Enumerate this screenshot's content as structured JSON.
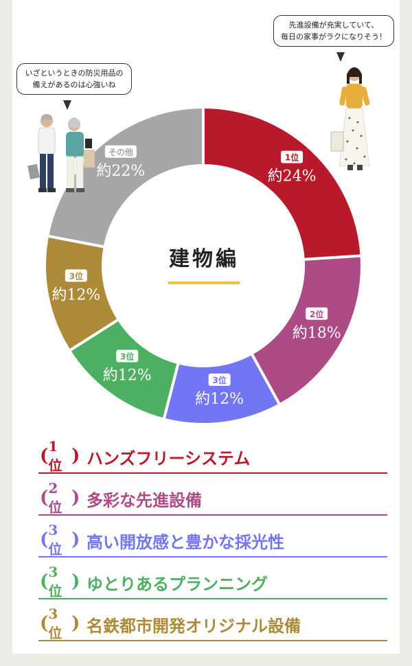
{
  "chart_data": {
    "type": "pie",
    "title": "建物編",
    "slices": [
      {
        "rank": "1位",
        "value": 24,
        "label": "約24%",
        "color": "#b8192b"
      },
      {
        "rank": "2位",
        "value": 18,
        "label": "約18%",
        "color": "#ad4b87"
      },
      {
        "rank": "3位",
        "value": 12,
        "label": "約12%",
        "color": "#7276f4"
      },
      {
        "rank": "3位",
        "value": 12,
        "label": "約12%",
        "color": "#4daf61"
      },
      {
        "rank": "3位",
        "value": 12,
        "label": "約12%",
        "color": "#ad8a37"
      },
      {
        "rank": "その他",
        "value": 22,
        "label": "約22%",
        "color": "#a6a6a6"
      }
    ]
  },
  "bubbles": {
    "left": [
      "いざというときの防災用品の",
      "備えがあるのは心強いね"
    ],
    "right": [
      "先進設備が充実していて、",
      "毎日の家事がラクになりそう！"
    ]
  },
  "ranking": [
    {
      "rank": "1位",
      "label": "ハンズフリーシステム",
      "color": "#b8192b"
    },
    {
      "rank": "2位",
      "label": "多彩な先進設備",
      "color": "#ad4b87"
    },
    {
      "rank": "3位",
      "label": "高い開放感と豊かな採光性",
      "color": "#7276f4"
    },
    {
      "rank": "3位",
      "label": "ゆとりあるプランニング",
      "color": "#4daf61"
    },
    {
      "rank": "3位",
      "label": "名鉄都市開発オリジナル設備",
      "color": "#ad8a37"
    }
  ],
  "icons": {
    "wreath": "laurel-wreath-icon",
    "people_left": "senior-couple-illustration",
    "person_right": "woman-shopping-illustration"
  }
}
